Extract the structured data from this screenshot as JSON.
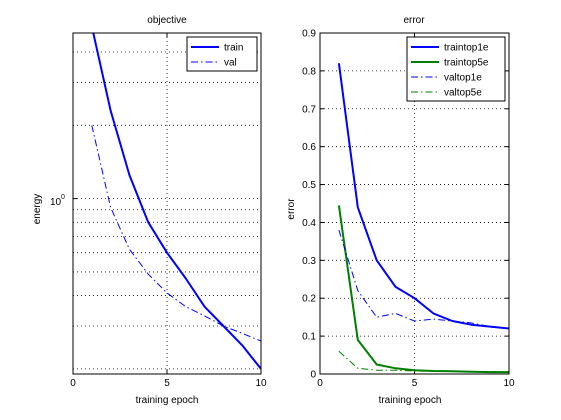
{
  "colors": {
    "blue": "#0000ff",
    "green": "#008000",
    "axis": "#000000",
    "background": "#ffffff"
  },
  "chart_data": [
    {
      "type": "line",
      "title": "objective",
      "xlabel": "training epoch",
      "ylabel": "energy",
      "yscale": "log",
      "xlim": [
        0,
        10
      ],
      "ylim_log10": [
        -0.72,
        0.68
      ],
      "xticks": [
        0,
        5,
        10
      ],
      "y_tick_label": "10",
      "y_tick_exponent": "0",
      "grid": true,
      "legend_position": "top-right",
      "x": [
        1,
        2,
        3,
        4,
        5,
        6,
        7,
        8,
        9,
        10
      ],
      "series": [
        {
          "name": "train",
          "color": "#0000ff",
          "style": "solid",
          "width": 2,
          "values": [
            5.1,
            2.3,
            1.25,
            0.8,
            0.6,
            0.47,
            0.36,
            0.3,
            0.25,
            0.2
          ]
        },
        {
          "name": "val",
          "color": "#0000ff",
          "style": "dashdot",
          "width": 1,
          "values": [
            2.0,
            0.92,
            0.62,
            0.49,
            0.41,
            0.36,
            0.33,
            0.3,
            0.28,
            0.26
          ]
        }
      ]
    },
    {
      "type": "line",
      "title": "error",
      "xlabel": "training epoch",
      "ylabel": "error",
      "xlim": [
        0,
        10
      ],
      "ylim": [
        0,
        0.9
      ],
      "xticks": [
        0,
        5,
        10
      ],
      "xtick_labels": [
        "0",
        "5",
        "10"
      ],
      "yticks": [
        0,
        0.1,
        0.2,
        0.3,
        0.4,
        0.5,
        0.6,
        0.7,
        0.8,
        0.9
      ],
      "ytick_labels": [
        "0",
        "0.1",
        "0.2",
        "0.3",
        "0.4",
        "0.5",
        "0.6",
        "0.7",
        "0.8",
        "0.9"
      ],
      "grid": true,
      "legend_position": "top-right",
      "x": [
        1,
        2,
        3,
        4,
        5,
        6,
        7,
        8,
        9,
        10
      ],
      "series": [
        {
          "name": "traintop1e",
          "color": "#0000ff",
          "style": "solid",
          "width": 2,
          "values": [
            0.82,
            0.44,
            0.3,
            0.23,
            0.2,
            0.16,
            0.14,
            0.13,
            0.125,
            0.12
          ]
        },
        {
          "name": "traintop5e",
          "color": "#008000",
          "style": "solid",
          "width": 2,
          "values": [
            0.445,
            0.09,
            0.025,
            0.015,
            0.01,
            0.008,
            0.007,
            0.006,
            0.005,
            0.005
          ]
        },
        {
          "name": "valtop1e",
          "color": "#0000ff",
          "style": "dashdot",
          "width": 1,
          "values": [
            0.38,
            0.22,
            0.15,
            0.16,
            0.14,
            0.145,
            0.14,
            0.135,
            0.125,
            0.12
          ]
        },
        {
          "name": "valtop5e",
          "color": "#008000",
          "style": "dashdot",
          "width": 1,
          "values": [
            0.06,
            0.015,
            0.01,
            0.01,
            0.008,
            0.007,
            0.007,
            0.006,
            0.006,
            0.006
          ]
        }
      ]
    }
  ]
}
